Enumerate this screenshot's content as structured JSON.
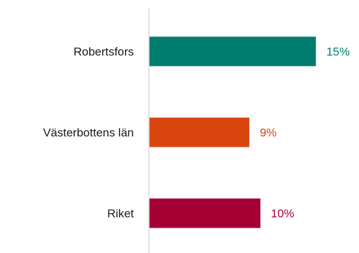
{
  "chart_data": {
    "type": "bar",
    "orientation": "horizontal",
    "categories": [
      "Robertsfors",
      "Västerbottens län",
      "Riket"
    ],
    "values": [
      15,
      9,
      10
    ],
    "value_labels": [
      "15%",
      "9%",
      "10%"
    ],
    "colors": [
      "#007c6e",
      "#d9450f",
      "#a50036"
    ],
    "unit": "%",
    "xlim": [
      0,
      15.9
    ],
    "grid": false,
    "legend": "none"
  }
}
